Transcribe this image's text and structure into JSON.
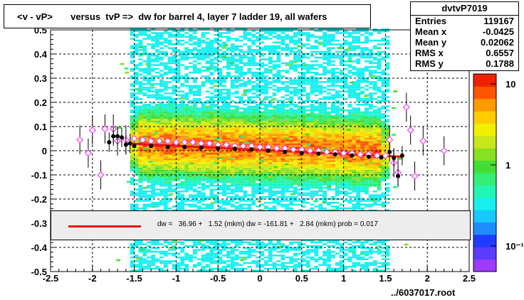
{
  "title": "<v - vP>       versus  tvP =>  dw for barrel 4, layer 7 ladder 19, all wafers",
  "stats": {
    "name": "dvtvP7019",
    "rows": [
      {
        "label": "Entries",
        "value": "119167"
      },
      {
        "label": "Mean x",
        "value": "-0.0425"
      },
      {
        "label": "Mean y",
        "value": "0.02062"
      },
      {
        "label": "RMS x",
        "value": "0.6557"
      },
      {
        "label": "RMS y",
        "value": "0.1788"
      }
    ]
  },
  "fit_legend": "dw =   36.96 +   1.52 (mkm) dw = -161.81 +   2.84 (mkm) prob = 0.017",
  "footer": "../6037017.root",
  "colors": {
    "fit": "#ee1111",
    "profile_black": "#000000",
    "profile_magenta": "#ee44ee"
  },
  "chart_data": {
    "type": "heatmap",
    "title": "<v - vP>       versus  tvP =>  dw for barrel 4, layer 7 ladder 19, all wafers",
    "xlim": [
      -2.5,
      2.5
    ],
    "ylim": [
      -0.5,
      0.5
    ],
    "x_ticks": [
      "-2.5",
      "-2",
      "-1.5",
      "-1",
      "-0.5",
      "0",
      "0.5",
      "1",
      "1.5",
      "2",
      "2.5"
    ],
    "y_ticks": [
      "-0.5",
      "-0.4",
      "-0.3",
      "-0.2",
      "-0.1",
      "0",
      "0.1",
      "0.2",
      "0.3",
      "0.4",
      "0.5"
    ],
    "grid": true,
    "colorbar": {
      "scale": "log",
      "tick_labels": [
        "10",
        "1",
        "10⁻¹"
      ]
    },
    "x_band": [
      -1.55,
      1.55
    ],
    "profile_black": {
      "x": [
        -1.8,
        -1.75,
        -1.7,
        -1.65,
        -1.6,
        -1.55,
        -1.5,
        -1.3,
        -1.1,
        -0.9,
        -0.7,
        -0.5,
        -0.3,
        -0.1,
        0.1,
        0.3,
        0.5,
        0.7,
        0.9,
        1.1,
        1.3,
        1.45,
        1.55,
        1.6,
        1.65,
        1.7
      ],
      "y": [
        0.035,
        0.06,
        0.06,
        0.055,
        0.025,
        0.03,
        0.02,
        0.02,
        0.015,
        0.015,
        0.013,
        0.01,
        0.008,
        0.005,
        0.0,
        -0.005,
        -0.01,
        -0.012,
        -0.015,
        -0.02,
        -0.025,
        -0.028,
        -0.005,
        -0.03,
        -0.105,
        -0.02
      ]
    },
    "profile_magenta": {
      "x": [
        -2.15,
        -2.05,
        -2.0,
        -1.9,
        -1.85,
        -1.75,
        -1.7,
        -1.6,
        -1.5,
        -1.4,
        -1.3,
        -1.2,
        -1.1,
        -1.0,
        -0.9,
        -0.8,
        -0.7,
        -0.6,
        -0.5,
        -0.4,
        -0.3,
        -0.2,
        -0.1,
        0.0,
        0.1,
        0.2,
        0.3,
        0.4,
        0.5,
        0.6,
        0.7,
        0.8,
        0.9,
        1.0,
        1.1,
        1.2,
        1.3,
        1.4,
        1.5,
        1.55,
        1.6,
        1.65,
        1.75,
        1.8,
        1.85,
        1.95,
        2.2
      ],
      "y": [
        0.045,
        -0.01,
        0.085,
        -0.1,
        0.09,
        0.09,
        0.04,
        0.045,
        0.05,
        0.045,
        0.04,
        0.04,
        0.04,
        0.035,
        0.035,
        0.035,
        0.03,
        0.03,
        0.025,
        0.025,
        0.02,
        0.02,
        0.02,
        0.015,
        0.015,
        0.01,
        0.01,
        0.005,
        0.005,
        0.0,
        0.0,
        -0.005,
        -0.005,
        -0.01,
        -0.01,
        -0.015,
        -0.015,
        -0.02,
        -0.02,
        0.045,
        -0.05,
        -0.09,
        0.18,
        0.085,
        -0.105,
        0.04,
        0.0
      ]
    },
    "fit_line": {
      "x": [
        -1.6,
        1.7
      ],
      "y": [
        0.03,
        -0.025
      ]
    }
  }
}
